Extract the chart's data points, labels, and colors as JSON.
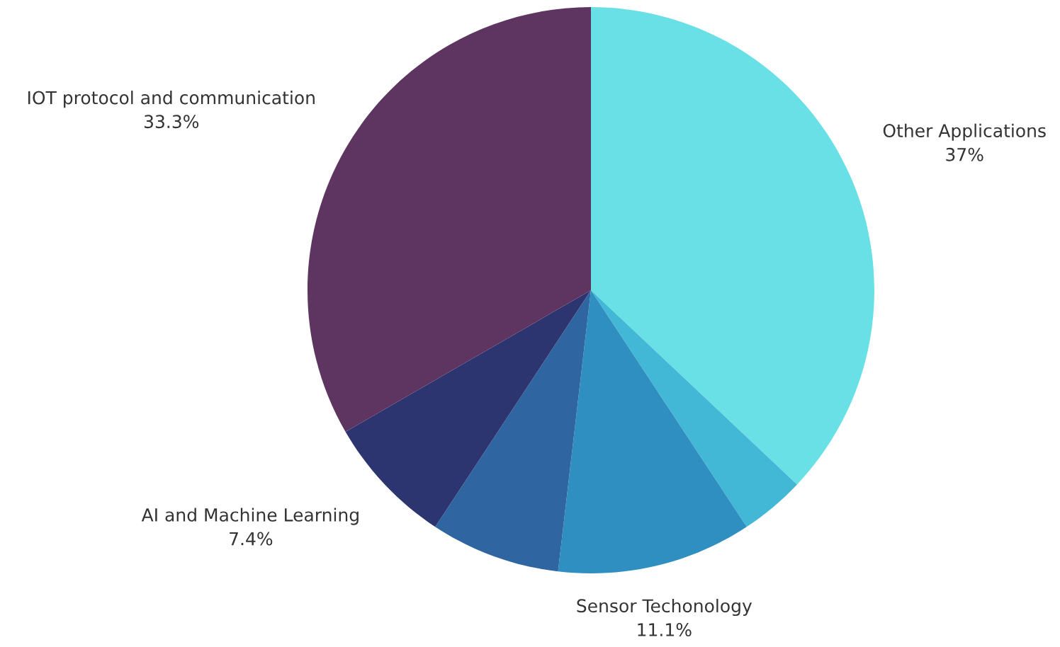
{
  "chart_data": {
    "type": "pie",
    "categories": [
      "Other Applications",
      null,
      "Sensor Techonology",
      null,
      "AI and Machine Learning",
      "IOT protocol and communication"
    ],
    "values": [
      37,
      3.7,
      11.1,
      7.4,
      7.4,
      33.3
    ],
    "value_labels": [
      "37%",
      null,
      "11.1%",
      null,
      "7.4%",
      "33.3%"
    ],
    "colors": [
      "#68e0e6",
      "#42b8d6",
      "#2e8fc0",
      "#2f65a0",
      "#2d3570",
      "#5e3461"
    ]
  }
}
